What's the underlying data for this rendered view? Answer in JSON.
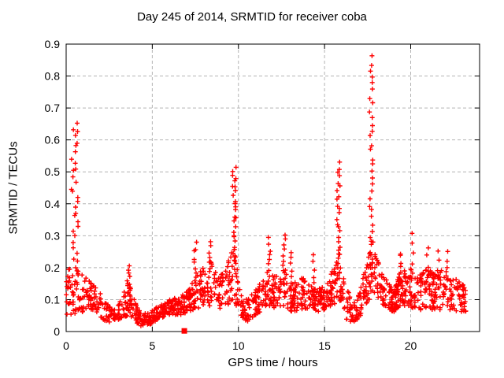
{
  "page": {
    "background": "#ffffff"
  },
  "chart_data": {
    "type": "scatter",
    "title": "Day 245 of 2014, SRMTID for receiver coba",
    "xlabel": "GPS time / hours",
    "ylabel": "SRMTID / TECUs",
    "xlim": [
      0,
      24
    ],
    "ylim": [
      0,
      0.9
    ],
    "xticks": [
      [
        0,
        "0"
      ],
      [
        5,
        "5"
      ],
      [
        10,
        "10"
      ],
      [
        15,
        "15"
      ],
      [
        20,
        "20"
      ]
    ],
    "yticks": [
      [
        0,
        "0"
      ],
      [
        0.1,
        "0.1"
      ],
      [
        0.2,
        "0.2"
      ],
      [
        0.3,
        "0.3"
      ],
      [
        0.4,
        "0.4"
      ],
      [
        0.5,
        "0.5"
      ],
      [
        0.6,
        "0.6"
      ],
      [
        0.7,
        "0.7"
      ],
      [
        0.8,
        "0.8"
      ],
      [
        0.9,
        "0.9"
      ]
    ],
    "grid": {
      "show": true,
      "style": "dashed",
      "color": "#b4b4b4"
    },
    "frame_color": "#000000",
    "text_color": "#000000",
    "marker": {
      "shape": "plus",
      "color": "#ff0000",
      "size": 7
    },
    "legend": "none",
    "series": [
      {
        "name": "SRMTID",
        "color": "#ff0000",
        "x_range": [
          0,
          23.2
        ],
        "point_count": 1400,
        "seed": 245,
        "band_envelope": [
          [
            0.0,
            0.05,
            0.21
          ],
          [
            0.3,
            0.05,
            0.22
          ],
          [
            0.7,
            0.06,
            0.19
          ],
          [
            1.1,
            0.06,
            0.17
          ],
          [
            1.5,
            0.07,
            0.16
          ],
          [
            1.9,
            0.05,
            0.13
          ],
          [
            2.3,
            0.03,
            0.09
          ],
          [
            2.8,
            0.03,
            0.07
          ],
          [
            3.2,
            0.04,
            0.1
          ],
          [
            3.6,
            0.05,
            0.16
          ],
          [
            4.0,
            0.03,
            0.1
          ],
          [
            4.4,
            0.015,
            0.06
          ],
          [
            4.9,
            0.02,
            0.06
          ],
          [
            5.4,
            0.04,
            0.09
          ],
          [
            6.0,
            0.05,
            0.1
          ],
          [
            6.6,
            0.05,
            0.11
          ],
          [
            7.1,
            0.06,
            0.13
          ],
          [
            7.5,
            0.07,
            0.18
          ],
          [
            8.0,
            0.08,
            0.2
          ],
          [
            8.4,
            0.08,
            0.22
          ],
          [
            8.8,
            0.07,
            0.17
          ],
          [
            9.3,
            0.08,
            0.2
          ],
          [
            9.7,
            0.1,
            0.28
          ],
          [
            10.1,
            0.05,
            0.14
          ],
          [
            10.5,
            0.03,
            0.1
          ],
          [
            11.0,
            0.05,
            0.13
          ],
          [
            11.5,
            0.07,
            0.17
          ],
          [
            11.8,
            0.08,
            0.2
          ],
          [
            12.3,
            0.07,
            0.17
          ],
          [
            12.7,
            0.08,
            0.2
          ],
          [
            13.1,
            0.06,
            0.15
          ],
          [
            13.6,
            0.07,
            0.17
          ],
          [
            14.1,
            0.07,
            0.16
          ],
          [
            14.6,
            0.06,
            0.13
          ],
          [
            15.1,
            0.07,
            0.16
          ],
          [
            15.5,
            0.08,
            0.2
          ],
          [
            15.85,
            0.1,
            0.26
          ],
          [
            16.2,
            0.04,
            0.14
          ],
          [
            16.7,
            0.02,
            0.1
          ],
          [
            17.1,
            0.05,
            0.14
          ],
          [
            17.45,
            0.08,
            0.22
          ],
          [
            17.75,
            0.12,
            0.3
          ],
          [
            18.1,
            0.09,
            0.22
          ],
          [
            18.5,
            0.08,
            0.17
          ],
          [
            19.0,
            0.06,
            0.13
          ],
          [
            19.4,
            0.08,
            0.19
          ],
          [
            19.9,
            0.08,
            0.2
          ],
          [
            20.4,
            0.06,
            0.18
          ],
          [
            20.9,
            0.07,
            0.2
          ],
          [
            21.4,
            0.06,
            0.18
          ],
          [
            22.0,
            0.07,
            0.2
          ],
          [
            22.5,
            0.06,
            0.17
          ],
          [
            23.2,
            0.06,
            0.14
          ]
        ],
        "spikes": [
          {
            "x": 0.5,
            "spread": 0.2,
            "y_base": 0.2,
            "y_top": 0.655,
            "n": 30
          },
          {
            "x": 3.6,
            "spread": 0.1,
            "y_base": 0.13,
            "y_top": 0.21,
            "n": 8
          },
          {
            "x": 7.5,
            "spread": 0.08,
            "y_base": 0.15,
            "y_top": 0.28,
            "n": 9
          },
          {
            "x": 8.35,
            "spread": 0.1,
            "y_base": 0.17,
            "y_top": 0.28,
            "n": 8
          },
          {
            "x": 9.75,
            "spread": 0.11,
            "y_base": 0.22,
            "y_top": 0.52,
            "n": 26
          },
          {
            "x": 11.8,
            "spread": 0.08,
            "y_base": 0.16,
            "y_top": 0.29,
            "n": 9
          },
          {
            "x": 12.65,
            "spread": 0.08,
            "y_base": 0.17,
            "y_top": 0.3,
            "n": 9
          },
          {
            "x": 13.05,
            "spread": 0.06,
            "y_base": 0.15,
            "y_top": 0.25,
            "n": 6
          },
          {
            "x": 14.35,
            "spread": 0.07,
            "y_base": 0.13,
            "y_top": 0.24,
            "n": 6
          },
          {
            "x": 15.8,
            "spread": 0.1,
            "y_base": 0.2,
            "y_top": 0.525,
            "n": 24
          },
          {
            "x": 17.7,
            "spread": 0.1,
            "y_base": 0.25,
            "y_top": 0.86,
            "n": 30
          },
          {
            "x": 19.45,
            "spread": 0.08,
            "y_base": 0.15,
            "y_top": 0.25,
            "n": 7
          },
          {
            "x": 20.1,
            "spread": 0.07,
            "y_base": 0.16,
            "y_top": 0.3,
            "n": 6
          },
          {
            "x": 21.0,
            "spread": 0.07,
            "y_base": 0.15,
            "y_top": 0.26,
            "n": 5
          },
          {
            "x": 21.6,
            "spread": 0.07,
            "y_base": 0.14,
            "y_top": 0.25,
            "n": 5
          },
          {
            "x": 22.1,
            "spread": 0.07,
            "y_base": 0.14,
            "y_top": 0.25,
            "n": 5
          }
        ]
      }
    ],
    "special_markers": [
      {
        "x": 6.86,
        "y": 0.002,
        "shape": "filled-square",
        "size": 7,
        "color": "#ff0000"
      }
    ]
  }
}
